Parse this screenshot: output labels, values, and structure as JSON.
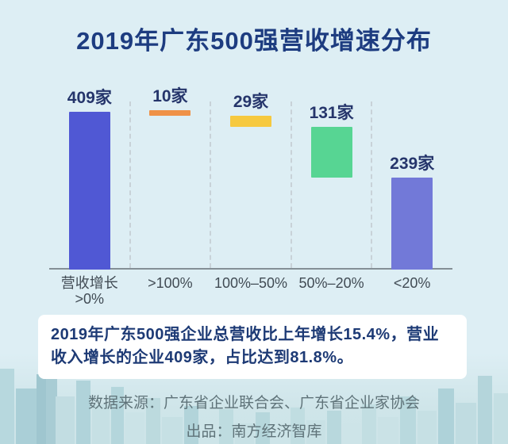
{
  "page": {
    "title": "2019年广东500强营收增速分布"
  },
  "chart_data": {
    "type": "bar",
    "subtype": "waterfall-distribution",
    "title": "2019年广东500强营收增速分布",
    "categories": [
      "营收增长>0%",
      ">100%",
      "100%–50%",
      "50%–20%",
      "<20%"
    ],
    "category_lines": [
      [
        "营收增长",
        ">0%"
      ],
      [
        ">100%"
      ],
      [
        "100%–50%"
      ],
      [
        "50%–20%"
      ],
      [
        "<20%"
      ]
    ],
    "values": [
      409,
      10,
      29,
      131,
      239
    ],
    "unit": "家",
    "bar_labels": [
      "409家",
      "10家",
      "29家",
      "131家",
      "239家"
    ],
    "bar_colors": [
      "#5058d4",
      "#ef9147",
      "#f6c93f",
      "#57d593",
      "#7279d8"
    ],
    "ylim": [
      0,
      409
    ],
    "grid": "dashed-column-separators",
    "legend_position": "none",
    "note": "first bar is total of companies with revenue growth; remaining bars decompose it by growth-rate bracket"
  },
  "summary_box": {
    "lines": [
      "2019年广东500强企业总营收比上年增长15.4%，营业",
      "收入增长的企业409家，占比达到81.8%。"
    ]
  },
  "footer": {
    "source_line": "数据来源：广东省企业联合会、广东省企业家协会",
    "producer_line": "出品：南方经济智库"
  },
  "colors": {
    "background": "#ddeef4",
    "title_text": "#1d3c80",
    "bar_label_text": "#25356b",
    "axis_text": "#414b54",
    "axis_line": "#848f96",
    "separator": "#c8d2d8",
    "box_bg": "#ffffff",
    "box_text": "#1d3a75",
    "footer_text": "#5f7379"
  }
}
